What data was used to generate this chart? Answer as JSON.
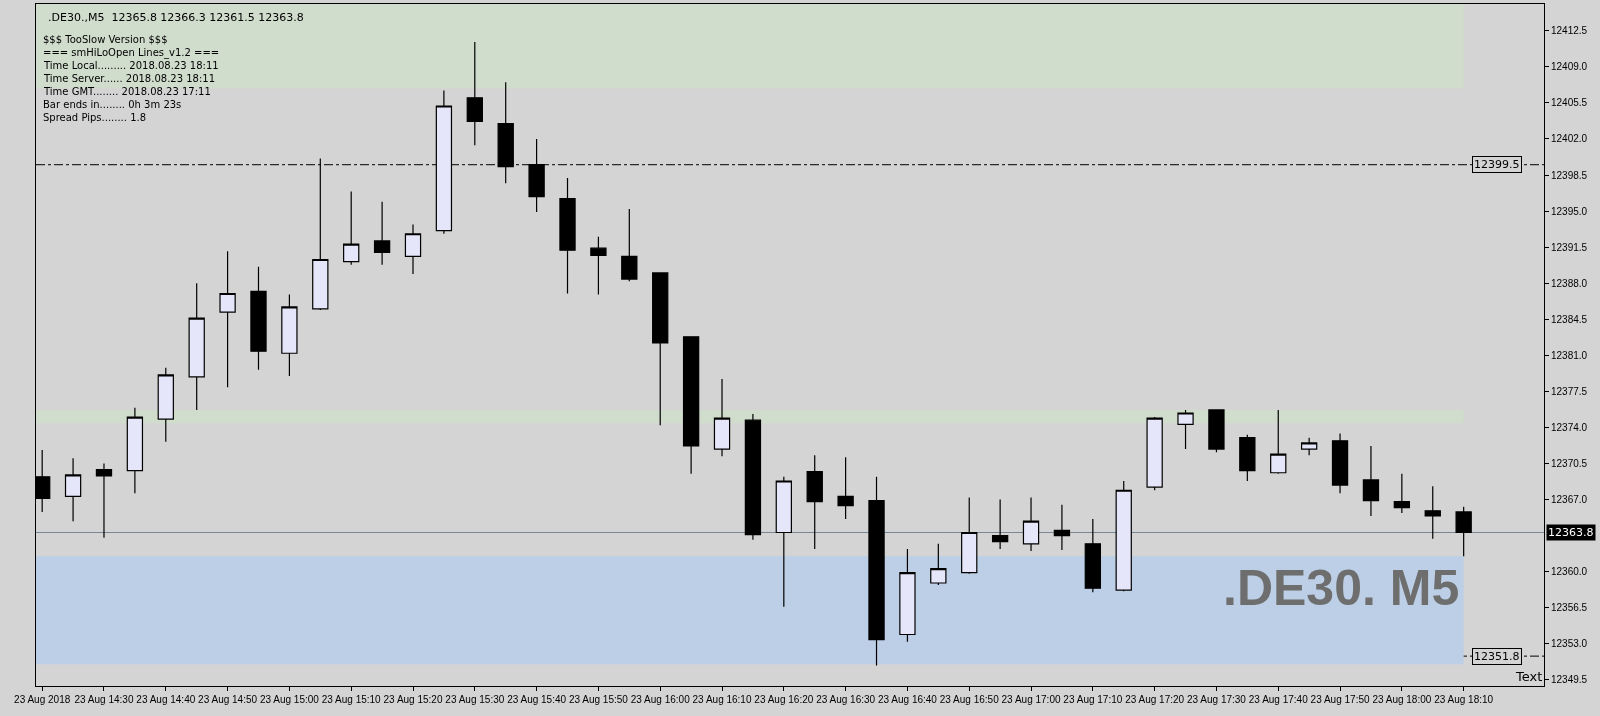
{
  "chart_data": {
    "type": "candlestick",
    "title": ".DE30.,M5  12365.8 12366.3 12361.5 12363.8",
    "x": [
      "2018-08-23T14:20",
      "2018-08-23T14:25",
      "2018-08-23T14:30",
      "2018-08-23T14:35",
      "2018-08-23T14:40",
      "2018-08-23T14:45",
      "2018-08-23T14:50",
      "2018-08-23T14:55",
      "2018-08-23T15:00",
      "2018-08-23T15:05",
      "2018-08-23T15:10",
      "2018-08-23T15:15",
      "2018-08-23T15:20",
      "2018-08-23T15:25",
      "2018-08-23T15:30",
      "2018-08-23T15:35",
      "2018-08-23T15:40",
      "2018-08-23T15:45",
      "2018-08-23T15:50",
      "2018-08-23T15:55",
      "2018-08-23T16:00",
      "2018-08-23T16:05",
      "2018-08-23T16:10",
      "2018-08-23T16:15",
      "2018-08-23T16:20",
      "2018-08-23T16:25",
      "2018-08-23T16:30",
      "2018-08-23T16:35",
      "2018-08-23T16:40",
      "2018-08-23T16:45",
      "2018-08-23T16:50",
      "2018-08-23T16:55",
      "2018-08-23T17:00",
      "2018-08-23T17:05",
      "2018-08-23T17:10",
      "2018-08-23T17:15",
      "2018-08-23T17:20",
      "2018-08-23T17:25",
      "2018-08-23T17:30",
      "2018-08-23T17:35",
      "2018-08-23T17:40",
      "2018-08-23T17:45",
      "2018-08-23T17:50",
      "2018-08-23T17:55",
      "2018-08-23T18:00",
      "2018-08-23T18:05",
      "2018-08-23T18:10"
    ],
    "ohlc": [
      [
        12369.2,
        12371.8,
        12365.8,
        12367.1
      ],
      [
        12367.3,
        12371.0,
        12364.9,
        12369.4
      ],
      [
        12369.9,
        12370.5,
        12363.3,
        12369.3
      ],
      [
        12369.8,
        12375.9,
        12367.6,
        12375.0
      ],
      [
        12374.8,
        12379.8,
        12372.6,
        12379.1
      ],
      [
        12378.9,
        12388.0,
        12375.7,
        12384.6
      ],
      [
        12385.2,
        12391.1,
        12377.9,
        12387.0
      ],
      [
        12387.2,
        12389.6,
        12379.6,
        12381.4
      ],
      [
        12381.2,
        12386.9,
        12379.0,
        12385.7
      ],
      [
        12385.5,
        12400.1,
        12385.4,
        12390.3
      ],
      [
        12390.1,
        12396.9,
        12389.8,
        12391.8
      ],
      [
        12392.1,
        12395.9,
        12389.8,
        12391.0
      ],
      [
        12390.6,
        12393.7,
        12388.9,
        12392.8
      ],
      [
        12393.1,
        12406.7,
        12392.8,
        12405.2
      ],
      [
        12406.0,
        12411.4,
        12401.4,
        12403.7
      ],
      [
        12403.5,
        12407.5,
        12397.7,
        12399.3
      ],
      [
        12399.5,
        12402.0,
        12394.9,
        12396.4
      ],
      [
        12396.2,
        12398.2,
        12387.0,
        12391.2
      ],
      [
        12391.4,
        12392.5,
        12386.9,
        12390.7
      ],
      [
        12390.6,
        12395.2,
        12388.2,
        12388.4
      ],
      [
        12389.0,
        12389.0,
        12374.2,
        12382.2
      ],
      [
        12382.8,
        12382.8,
        12369.5,
        12372.2
      ],
      [
        12371.9,
        12378.7,
        12371.2,
        12374.9
      ],
      [
        12374.7,
        12375.3,
        12363.1,
        12363.6
      ],
      [
        12363.8,
        12369.2,
        12356.6,
        12368.8
      ],
      [
        12369.7,
        12371.3,
        12362.2,
        12366.8
      ],
      [
        12367.3,
        12371.1,
        12365.1,
        12366.4
      ],
      [
        12366.9,
        12369.2,
        12350.9,
        12353.4
      ],
      [
        12353.9,
        12362.2,
        12353.2,
        12359.9
      ],
      [
        12358.9,
        12362.7,
        12358.7,
        12360.3
      ],
      [
        12359.9,
        12367.2,
        12359.8,
        12363.8
      ],
      [
        12363.5,
        12367.0,
        12362.2,
        12362.9
      ],
      [
        12362.7,
        12367.2,
        12362.0,
        12364.9
      ],
      [
        12364.0,
        12366.5,
        12362.1,
        12363.5
      ],
      [
        12362.7,
        12365.1,
        12358.0,
        12358.4
      ],
      [
        12358.2,
        12368.8,
        12358.1,
        12367.9
      ],
      [
        12368.2,
        12375.0,
        12367.9,
        12374.9
      ],
      [
        12374.3,
        12375.7,
        12371.9,
        12375.4
      ],
      [
        12375.7,
        12375.7,
        12371.6,
        12371.9
      ],
      [
        12373.0,
        12373.3,
        12368.8,
        12369.8
      ],
      [
        12369.6,
        12375.7,
        12369.5,
        12371.4
      ],
      [
        12371.9,
        12373.0,
        12371.3,
        12372.5
      ],
      [
        12372.7,
        12373.4,
        12367.6,
        12368.4
      ],
      [
        12368.9,
        12372.2,
        12365.4,
        12366.9
      ],
      [
        12366.8,
        12369.5,
        12365.7,
        12366.2
      ],
      [
        12365.9,
        12368.3,
        12363.2,
        12365.4
      ],
      [
        12365.8,
        12366.3,
        12361.5,
        12363.8
      ]
    ],
    "colors": [
      "#000000",
      "#e6e6fa",
      "#000000",
      "#e6e6fa",
      "#e6e6fa",
      "#e6e6fa",
      "#e6e6fa",
      "#000000",
      "#e6e6fa",
      "#e6e6fa",
      "#e6e6fa",
      "#000000",
      "#e6e6fa",
      "#e6e6fa",
      "#000000",
      "#000000",
      "#000000",
      "#000000",
      "#000000",
      "#000000",
      "#000000",
      "#000000",
      "#e6e6fa",
      "#000000",
      "#e6e6fa",
      "#000000",
      "#000000",
      "#000000",
      "#e6e6fa",
      "#e6e6fa",
      "#e6e6fa",
      "#000000",
      "#e6e6fa",
      "#000000",
      "#000000",
      "#e6e6fa",
      "#e6e6fa",
      "#e6e6fa",
      "#000000",
      "#000000",
      "#e6e6fa",
      "#e6e6fa",
      "#000000",
      "#000000",
      "#000000",
      "#000000",
      "#000000"
    ],
    "xlim": [
      "2018-08-23T14:19",
      "2018-08-23T18:23"
    ],
    "xticks": [
      {
        "value": "2018-08-23T14:20",
        "label": "23 Aug 2018"
      },
      {
        "value": "2018-08-23T14:30",
        "label": "23 Aug 14:30"
      },
      {
        "value": "2018-08-23T14:40",
        "label": "23 Aug 14:40"
      },
      {
        "value": "2018-08-23T14:50",
        "label": "23 Aug 14:50"
      },
      {
        "value": "2018-08-23T15:00",
        "label": "23 Aug 15:00"
      },
      {
        "value": "2018-08-23T15:10",
        "label": "23 Aug 15:10"
      },
      {
        "value": "2018-08-23T15:20",
        "label": "23 Aug 15:20"
      },
      {
        "value": "2018-08-23T15:30",
        "label": "23 Aug 15:30"
      },
      {
        "value": "2018-08-23T15:40",
        "label": "23 Aug 15:40"
      },
      {
        "value": "2018-08-23T15:50",
        "label": "23 Aug 15:50"
      },
      {
        "value": "2018-08-23T16:00",
        "label": "23 Aug 16:00"
      },
      {
        "value": "2018-08-23T16:10",
        "label": "23 Aug 16:10"
      },
      {
        "value": "2018-08-23T16:20",
        "label": "23 Aug 16:20"
      },
      {
        "value": "2018-08-23T16:30",
        "label": "23 Aug 16:30"
      },
      {
        "value": "2018-08-23T16:40",
        "label": "23 Aug 16:40"
      },
      {
        "value": "2018-08-23T16:50",
        "label": "23 Aug 16:50"
      },
      {
        "value": "2018-08-23T17:00",
        "label": "23 Aug 17:00"
      },
      {
        "value": "2018-08-23T17:10",
        "label": "23 Aug 17:10"
      },
      {
        "value": "2018-08-23T17:20",
        "label": "23 Aug 17:20"
      },
      {
        "value": "2018-08-23T17:30",
        "label": "23 Aug 17:30"
      },
      {
        "value": "2018-08-23T17:40",
        "label": "23 Aug 17:40"
      },
      {
        "value": "2018-08-23T17:50",
        "label": "23 Aug 17:50"
      },
      {
        "value": "2018-08-23T18:00",
        "label": "23 Aug 18:00"
      },
      {
        "value": "2018-08-23T18:10",
        "label": "23 Aug 18:10"
      }
    ],
    "ylim": [
      12348.9,
      12415.1
    ],
    "yticks": [
      {
        "value": 12412.5,
        "label": "12412.5"
      },
      {
        "value": 12409,
        "label": "12409.0"
      },
      {
        "value": 12405.5,
        "label": "12405.5"
      },
      {
        "value": 12402,
        "label": "12402.0"
      },
      {
        "value": 12398.5,
        "label": "12398.5"
      },
      {
        "value": 12395,
        "label": "12395.0"
      },
      {
        "value": 12391.5,
        "label": "12391.5"
      },
      {
        "value": 12388,
        "label": "12388.0"
      },
      {
        "value": 12384.5,
        "label": "12384.5"
      },
      {
        "value": 12381,
        "label": "12381.0"
      },
      {
        "value": 12377.5,
        "label": "12377.5"
      },
      {
        "value": 12374,
        "label": "12374.0"
      },
      {
        "value": 12370.5,
        "label": "12370.5"
      },
      {
        "value": 12367,
        "label": "12367.0"
      },
      {
        "value": 12360,
        "label": "12360.0"
      },
      {
        "value": 12356.5,
        "label": "12356.5"
      },
      {
        "value": 12353,
        "label": "12353.0"
      },
      {
        "value": 12349.5,
        "label": "12349.5"
      }
    ],
    "bands": [
      {
        "axis": "y",
        "from": 12406.9,
        "to": 12415.1,
        "color": "#d0dccc"
      },
      {
        "axis": "y",
        "from": 12374.4,
        "to": 12375.7,
        "color": "#d0dccc"
      },
      {
        "axis": "y",
        "from": 12351.0,
        "to": 12361.5,
        "color": "#bccfe6"
      }
    ],
    "ref_lines": [
      {
        "axis": "y",
        "value": 12399.5,
        "label": "12399.5",
        "color": "#000000",
        "line_style": "dashdot"
      },
      {
        "axis": "y",
        "value": 12351.8,
        "label": "12351.8",
        "color": "#000000",
        "line_style": "dashdot"
      },
      {
        "axis": "y",
        "value": 12363.8,
        "label": "12363.8",
        "color": "#778899",
        "line_style": "solid"
      }
    ],
    "annotations": [
      "$$$ TooSlow Version $$$",
      "=== smHiLoOpen Lines_v1.2 ===",
      "Time Local......... 2018.08.23 18:11",
      "Time Server...... 2018.08.23 18:11",
      "Time GMT........ 2018.08.23 17:11",
      "Bar ends in........ 0h 3m 23s",
      "Spread Pips........ 1.8",
      ".DE30. M5",
      "Text"
    ]
  }
}
